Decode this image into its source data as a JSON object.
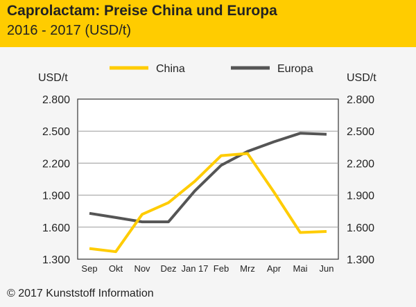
{
  "header": {
    "title": "Caprolactam: Preise China und Europa",
    "subtitle": "2016 - 2017 (USD/t)"
  },
  "footer": {
    "copyright": "© 2017 Kunststoff Information"
  },
  "colors": {
    "header_bg": "#ffcc00",
    "china": "#ffcc00",
    "europa": "#555555"
  },
  "chart_data": {
    "type": "line",
    "categories": [
      "Sep",
      "Okt",
      "Nov",
      "Dez",
      "Jan 17",
      "Feb",
      "Mrz",
      "Apr",
      "Mai",
      "Jun"
    ],
    "series": [
      {
        "name": "China",
        "values": [
          1400,
          1370,
          1720,
          1830,
          2030,
          2270,
          2290,
          1930,
          1550,
          1560
        ]
      },
      {
        "name": "Europa",
        "values": [
          1730,
          1690,
          1650,
          1650,
          1940,
          2180,
          2310,
          2400,
          2480,
          2470
        ]
      }
    ],
    "y_axis_label_left": "USD/t",
    "y_axis_label_right": "USD/t",
    "ylim": [
      1300,
      2800
    ],
    "yticks": [
      1300,
      1600,
      1900,
      2200,
      2500,
      2800
    ],
    "ytick_labels": [
      "1.300",
      "1.600",
      "1.900",
      "2.200",
      "2.500",
      "2.800"
    ],
    "grid": "horizontal",
    "legend_position": "top"
  }
}
